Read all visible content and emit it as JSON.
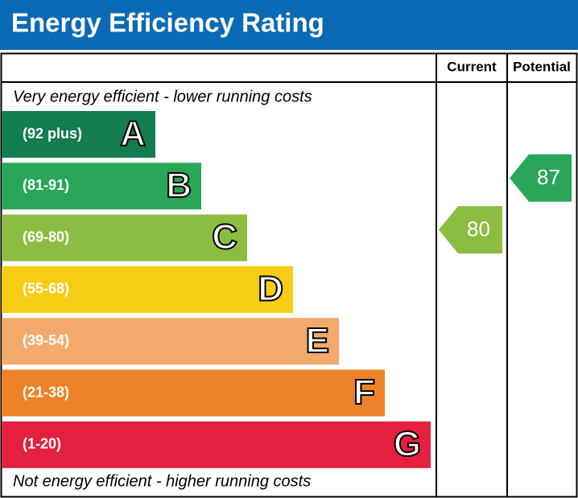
{
  "header": {
    "title": "Energy Efficiency Rating"
  },
  "chart_data": {
    "type": "epc",
    "top_note": "Very energy efficient - lower running costs",
    "bottom_note": "Not energy efficient - higher running costs",
    "bands": [
      {
        "range": "(92 plus)",
        "letter": "A",
        "color": "#137d4f"
      },
      {
        "range": "(81-91)",
        "letter": "B",
        "color": "#2aa65b"
      },
      {
        "range": "(69-80)",
        "letter": "C",
        "color": "#8cbd42"
      },
      {
        "range": "(55-68)",
        "letter": "D",
        "color": "#f6cc15"
      },
      {
        "range": "(39-54)",
        "letter": "E",
        "color": "#f3a96b"
      },
      {
        "range": "(21-38)",
        "letter": "F",
        "color": "#ed8229"
      },
      {
        "range": "(1-20)",
        "letter": "G",
        "color": "#e4203e"
      }
    ],
    "series": [
      {
        "name": "Current",
        "value": 80
      },
      {
        "name": "Potential",
        "value": 87
      }
    ]
  }
}
